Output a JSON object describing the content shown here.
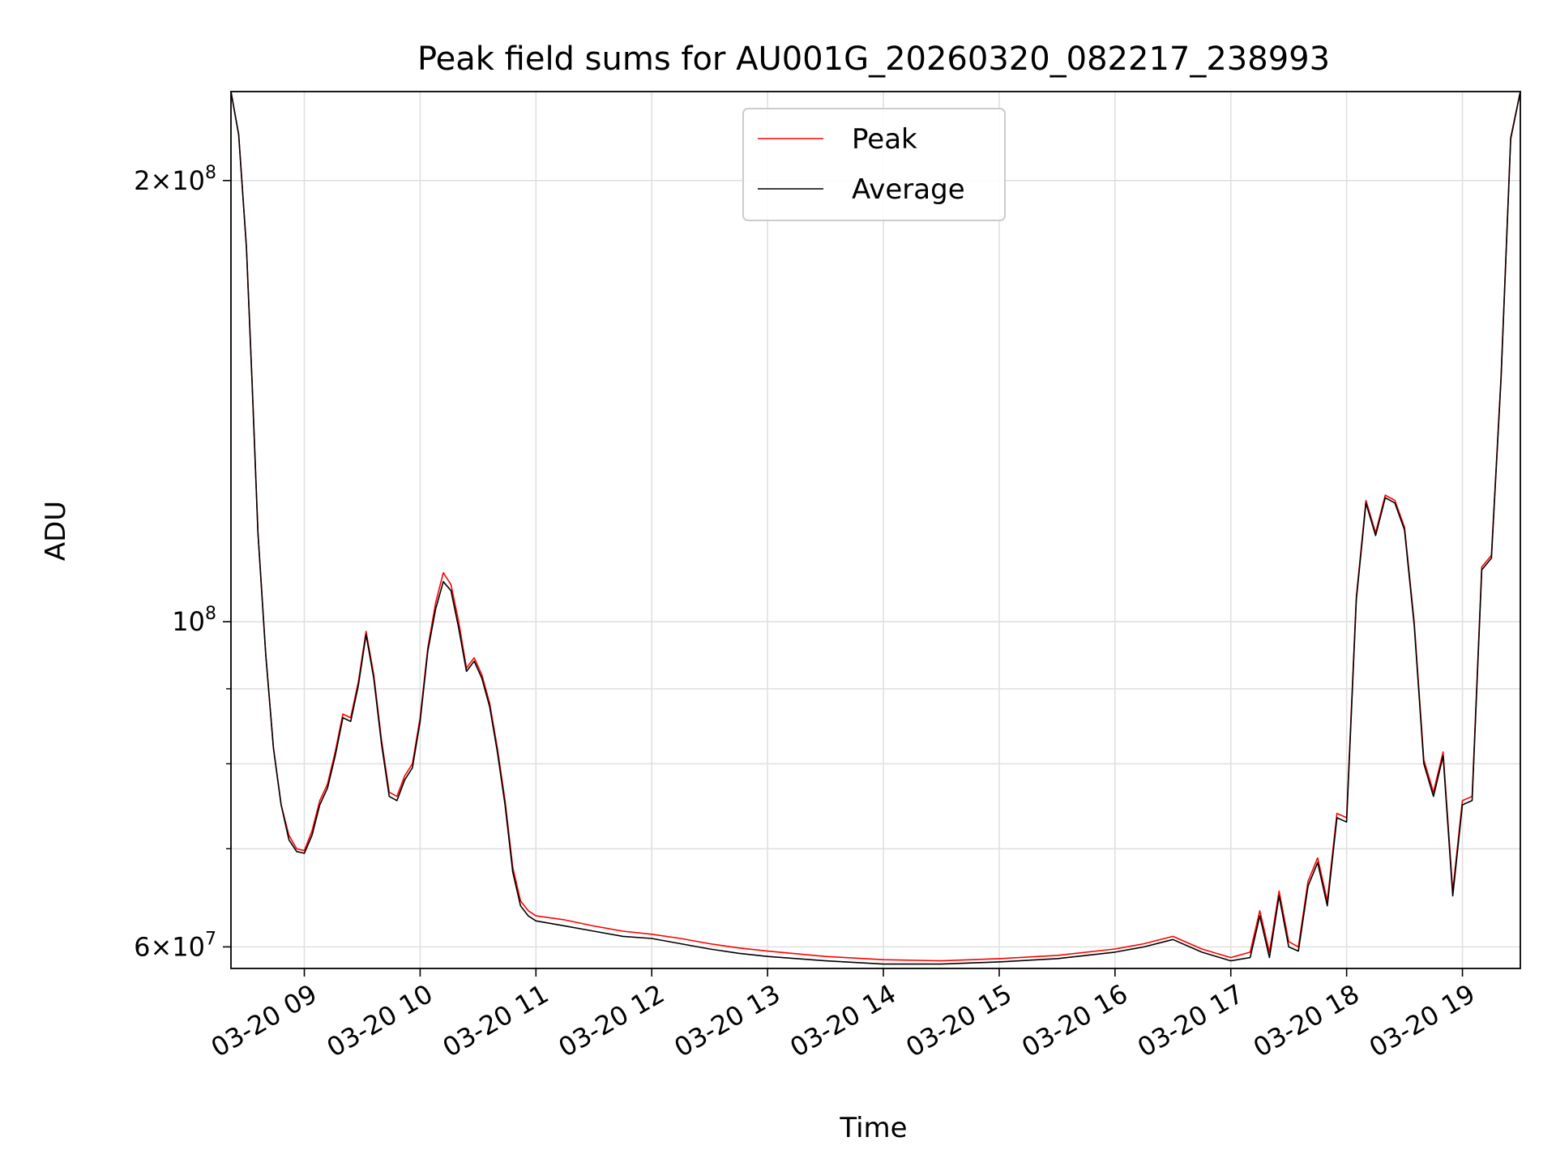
{
  "chart_data": {
    "type": "line",
    "title": "Peak field sums for AU001G_20260320_082217_238993",
    "xlabel": "Time",
    "ylabel": "ADU",
    "yscale": "log",
    "grid": true,
    "legend_position": "top-center",
    "xlim": [
      "2026-03-20 08:22",
      "2026-03-20 19:30"
    ],
    "ylim": [
      58000000,
      230000000
    ],
    "x_ticks": [
      "03-20 09",
      "03-20 10",
      "03-20 11",
      "03-20 12",
      "03-20 13",
      "03-20 14",
      "03-20 15",
      "03-20 16",
      "03-20 17",
      "03-20 18",
      "03-20 19"
    ],
    "y_tick_labels": [
      {
        "value": 60000000,
        "mantissa": "6",
        "exponent": "7"
      },
      {
        "value": 100000000,
        "mantissa": "",
        "exponent": "8"
      },
      {
        "value": 200000000,
        "mantissa": "2",
        "exponent": "8"
      }
    ],
    "y_minor_ticks": [
      70000000,
      80000000,
      90000000
    ],
    "series": [
      {
        "name": "Peak",
        "color": "#ff0000",
        "x": [
          "08:22",
          "08:26",
          "08:30",
          "08:33",
          "08:36",
          "08:40",
          "08:44",
          "08:48",
          "08:52",
          "08:56",
          "09:00",
          "09:04",
          "09:08",
          "09:12",
          "09:16",
          "09:20",
          "09:24",
          "09:28",
          "09:32",
          "09:36",
          "09:40",
          "09:44",
          "09:48",
          "09:52",
          "09:56",
          "10:00",
          "10:04",
          "10:08",
          "10:12",
          "10:16",
          "10:20",
          "10:24",
          "10:28",
          "10:32",
          "10:36",
          "10:40",
          "10:44",
          "10:48",
          "10:52",
          "10:56",
          "11:00",
          "11:15",
          "11:30",
          "11:45",
          "12:00",
          "12:15",
          "12:30",
          "12:45",
          "13:00",
          "13:30",
          "14:00",
          "14:30",
          "15:00",
          "15:30",
          "16:00",
          "16:15",
          "16:30",
          "16:45",
          "17:00",
          "17:10",
          "17:15",
          "17:20",
          "17:25",
          "17:30",
          "17:35",
          "17:40",
          "17:45",
          "17:50",
          "17:55",
          "18:00",
          "18:05",
          "18:10",
          "18:15",
          "18:20",
          "18:25",
          "18:30",
          "18:35",
          "18:40",
          "18:45",
          "18:50",
          "18:55",
          "19:00",
          "19:05",
          "19:10",
          "19:15",
          "19:20",
          "19:25",
          "19:30"
        ],
        "values": [
          230000000,
          215000000,
          180000000,
          145000000,
          115000000,
          95000000,
          82000000,
          75000000,
          71500000,
          70000000,
          69800000,
          72000000,
          75500000,
          77500000,
          81500000,
          86500000,
          86000000,
          91000000,
          98500000,
          92000000,
          83000000,
          76500000,
          76000000,
          78500000,
          80000000,
          86000000,
          96000000,
          103000000,
          108000000,
          106000000,
          100000000,
          93000000,
          94500000,
          92000000,
          88000000,
          82000000,
          75500000,
          68000000,
          64500000,
          63500000,
          63000000,
          62600000,
          62000000,
          61500000,
          61200000,
          60800000,
          60300000,
          59900000,
          59600000,
          59100000,
          58800000,
          58700000,
          58900000,
          59200000,
          59800000,
          60300000,
          61000000,
          59800000,
          59000000,
          59500000,
          63500000,
          59500000,
          65500000,
          60500000,
          60000000,
          66500000,
          69000000,
          64500000,
          74000000,
          73500000,
          104000000,
          121000000,
          115000000,
          122000000,
          121000000,
          116000000,
          100000000,
          80500000,
          76500000,
          81500000,
          65500000,
          75500000,
          76000000,
          109000000,
          111000000,
          147000000,
          214000000,
          230000000
        ]
      },
      {
        "name": "Average",
        "color": "#000000",
        "x": [
          "08:22",
          "08:26",
          "08:30",
          "08:33",
          "08:36",
          "08:40",
          "08:44",
          "08:48",
          "08:52",
          "08:56",
          "09:00",
          "09:04",
          "09:08",
          "09:12",
          "09:16",
          "09:20",
          "09:24",
          "09:28",
          "09:32",
          "09:36",
          "09:40",
          "09:44",
          "09:48",
          "09:52",
          "09:56",
          "10:00",
          "10:04",
          "10:08",
          "10:12",
          "10:16",
          "10:20",
          "10:24",
          "10:28",
          "10:32",
          "10:36",
          "10:40",
          "10:44",
          "10:48",
          "10:52",
          "10:56",
          "11:00",
          "11:15",
          "11:30",
          "11:45",
          "12:00",
          "12:15",
          "12:30",
          "12:45",
          "13:00",
          "13:30",
          "14:00",
          "14:30",
          "15:00",
          "15:30",
          "16:00",
          "16:15",
          "16:30",
          "16:45",
          "17:00",
          "17:10",
          "17:15",
          "17:20",
          "17:25",
          "17:30",
          "17:35",
          "17:40",
          "17:45",
          "17:50",
          "17:55",
          "18:00",
          "18:05",
          "18:10",
          "18:15",
          "18:20",
          "18:25",
          "18:30",
          "18:35",
          "18:40",
          "18:45",
          "18:50",
          "18:55",
          "19:00",
          "19:05",
          "19:10",
          "19:15",
          "19:20",
          "19:25",
          "19:30"
        ],
        "values": [
          230000000,
          215000000,
          180000000,
          145000000,
          115000000,
          95000000,
          82000000,
          75000000,
          71000000,
          69700000,
          69500000,
          71500000,
          75000000,
          77000000,
          81000000,
          86000000,
          85500000,
          90500000,
          98000000,
          91500000,
          82500000,
          76000000,
          75500000,
          78000000,
          79500000,
          85500000,
          95500000,
          102000000,
          106500000,
          105000000,
          99000000,
          92500000,
          94000000,
          91500000,
          87500000,
          81500000,
          75000000,
          67500000,
          64000000,
          63000000,
          62500000,
          62000000,
          61500000,
          61000000,
          60800000,
          60300000,
          59800000,
          59400000,
          59100000,
          58700000,
          58400000,
          58400000,
          58600000,
          58900000,
          59500000,
          60000000,
          60700000,
          59500000,
          58700000,
          59000000,
          63000000,
          59000000,
          65000000,
          60000000,
          59600000,
          66000000,
          68500000,
          64000000,
          73500000,
          73000000,
          103500000,
          120500000,
          114500000,
          121500000,
          120500000,
          115500000,
          99500000,
          80000000,
          76000000,
          81000000,
          65000000,
          75000000,
          75500000,
          108500000,
          110500000,
          146500000,
          213500000,
          230000000
        ]
      }
    ]
  }
}
